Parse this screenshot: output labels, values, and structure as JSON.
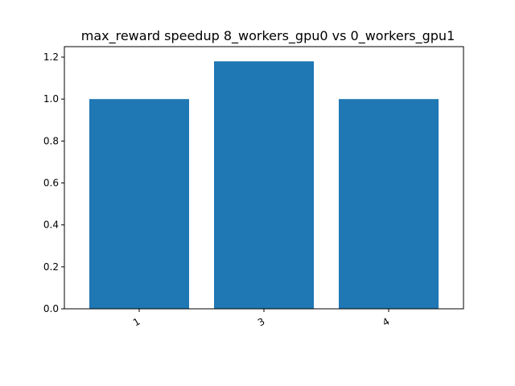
{
  "chart_data": {
    "type": "bar",
    "title": "max_reward speedup 8_workers_gpu0 vs 0_workers_gpu1",
    "xlabel": "",
    "ylabel": "",
    "categories": [
      "1",
      "3",
      "4"
    ],
    "values": [
      1.0,
      1.18,
      1.0
    ],
    "ylim": [
      0,
      1.25
    ],
    "yticks": [
      0.0,
      0.2,
      0.4,
      0.6,
      0.8,
      1.0,
      1.2
    ],
    "ytick_labels": [
      "0.0",
      "0.2",
      "0.4",
      "0.6",
      "0.8",
      "1.0",
      "1.2"
    ],
    "bar_color": "#1f77b4",
    "grid": false,
    "legend": "none",
    "x_tick_rotation_deg": -30
  }
}
